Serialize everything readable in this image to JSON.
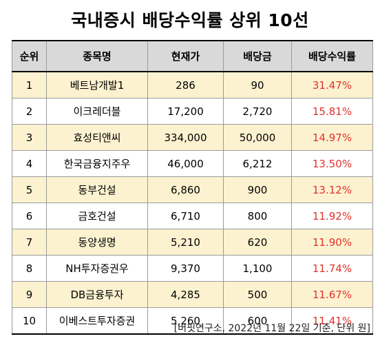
{
  "title": "국내증시 배당수익률 상위 10선",
  "headers": [
    "순위",
    "종목명",
    "현재가",
    "배당금",
    "배당수익률"
  ],
  "rows": [
    [
      "1",
      "베트남개발1",
      "286",
      "90",
      "31.47%"
    ],
    [
      "2",
      "이크레더블",
      "17,200",
      "2,720",
      "15.81%"
    ],
    [
      "3",
      "효성티앤씨",
      "334,000",
      "50,000",
      "14.97%"
    ],
    [
      "4",
      "한국금융지주우",
      "46,000",
      "6,212",
      "13.50%"
    ],
    [
      "5",
      "동부건설",
      "6,860",
      "900",
      "13.12%"
    ],
    [
      "6",
      "금호건설",
      "6,710",
      "800",
      "11.92%"
    ],
    [
      "7",
      "동양생명",
      "5,210",
      "620",
      "11.90%"
    ],
    [
      "8",
      "NH투자증권우",
      "9,370",
      "1,100",
      "11.74%"
    ],
    [
      "9",
      "DB금융투자",
      "4,285",
      "500",
      "11.67%"
    ],
    [
      "10",
      "이베스트투자증권",
      "5,260",
      "600",
      "11.41%"
    ]
  ],
  "note": "[버핏연구소, 2022년 11월 22일 기준, 단위 원]",
  "colors": {
    "header_bg": "#d9d9d9",
    "highlight_row_bg": "#fdf2d0",
    "yield_text": "#e0312b"
  }
}
